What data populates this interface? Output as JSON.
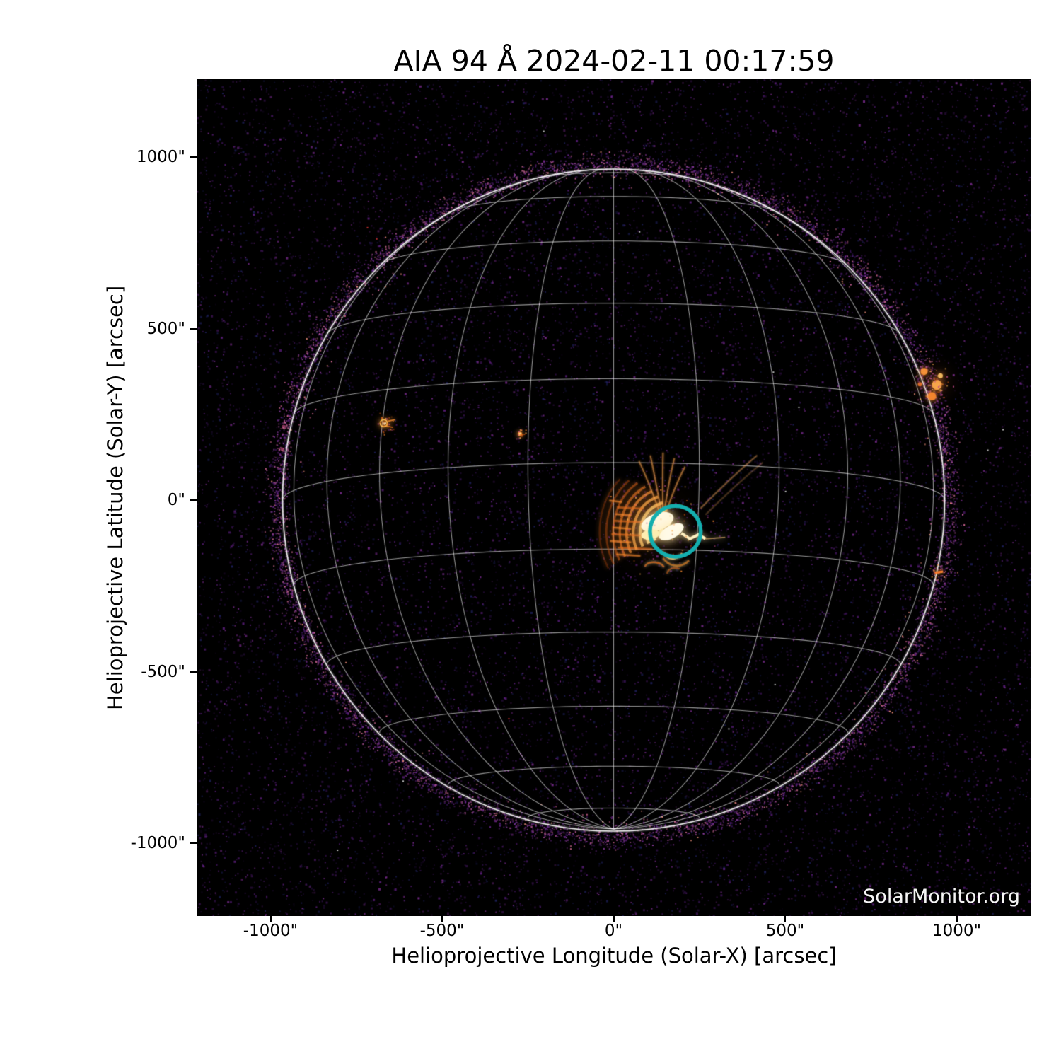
{
  "figure": {
    "watermark": "SolarMonitor.org"
  },
  "chart_data": {
    "type": "heatmap",
    "description": "SDO/AIA 94 Angstrom EUV full-disk solar image with heliographic grid overlay and flare-region marker",
    "title": "AIA 94 Å 2024-02-11 00:17:59",
    "instrument": "AIA 94 Å",
    "observation_time": "2024-02-11 00:17:59",
    "xlabel": "Helioprojective Longitude (Solar-X) [arcsec]",
    "ylabel": "Helioprojective Latitude (Solar-Y) [arcsec]",
    "xlim": [
      -1220,
      1220
    ],
    "ylim": [
      -1220,
      1220
    ],
    "grid_on": true,
    "xticks": {
      "values": [
        -1000,
        -500,
        0,
        500,
        1000
      ],
      "labels": [
        "-1000\"",
        "-500\"",
        "0\"",
        "500\"",
        "1000\""
      ]
    },
    "yticks": {
      "values": [
        1000,
        500,
        0,
        -500,
        -1000
      ],
      "labels": [
        "1000\"",
        "500\"",
        "0\"",
        "-500\"",
        "-1000\""
      ]
    },
    "heliographic_grid": {
      "spacing_deg": 15,
      "b0_deg": -6.5,
      "color": "#ffffff",
      "alpha": 0.58
    },
    "solar_limb": {
      "radius_arcsec": 965,
      "color": "#ffffff"
    },
    "background_color": "#000000",
    "colormap_hint": [
      "#000000",
      "#3a1158",
      "#8e31a8",
      "#e06114",
      "#ffae4d",
      "#fff9e0"
    ],
    "annotation_circle": {
      "x_arcsec": 180,
      "y_arcsec": -91,
      "radius_arcsec": 74,
      "color": "#14aeae"
    },
    "features": [
      {
        "name": "flaring-active-region",
        "x_arcsec": 140,
        "y_arcsec": -80
      },
      {
        "name": "small-bright-point-east",
        "x_arcsec": -670,
        "y_arcsec": 224
      },
      {
        "name": "small-bright-point-center-east",
        "x_arcsec": -273,
        "y_arcsec": 193
      },
      {
        "name": "west-limb-active-region",
        "x_arcsec": 934,
        "y_arcsec": 342
      },
      {
        "name": "west-limb-brightening-south",
        "x_arcsec": 948,
        "y_arcsec": -210
      }
    ]
  }
}
